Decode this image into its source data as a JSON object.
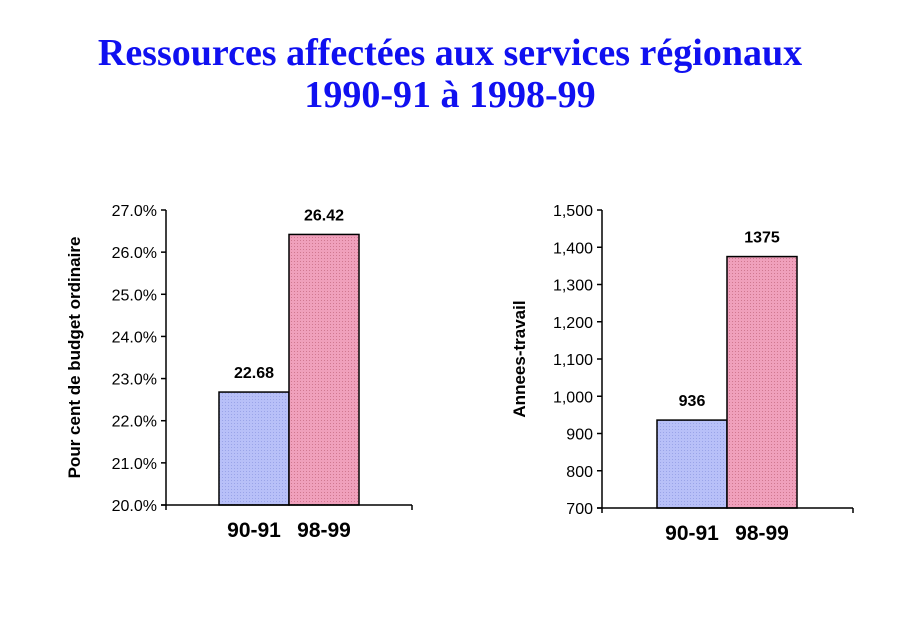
{
  "title": {
    "line1": "Ressources affectées aux services régionaux",
    "line2": "1990-91 à 1998-99"
  },
  "colors": {
    "title": "#1010f0",
    "series1": "#b4bcf4",
    "series2": "#ec98b4"
  },
  "chart_data": [
    {
      "type": "bar",
      "categories": [
        "90-91",
        "98-99"
      ],
      "values": [
        22.68,
        26.42
      ],
      "data_labels": [
        "22.68",
        "26.42"
      ],
      "ylabel": "Pour cent de budget ordinaire",
      "ylim": [
        20,
        27
      ],
      "yticks": [
        "20.0%",
        "21.0%",
        "22.0%",
        "23.0%",
        "24.0%",
        "25.0%",
        "26.0%",
        "27.0%"
      ],
      "grid": false
    },
    {
      "type": "bar",
      "categories": [
        "90-91",
        "98-99"
      ],
      "values": [
        936,
        1375
      ],
      "data_labels": [
        "936",
        "1375"
      ],
      "ylabel": "Annees-travail",
      "ylim": [
        700,
        1500
      ],
      "yticks": [
        "700",
        "800",
        "900",
        "1,000",
        "1,100",
        "1,200",
        "1,300",
        "1,400",
        "1,500"
      ],
      "grid": false
    }
  ]
}
